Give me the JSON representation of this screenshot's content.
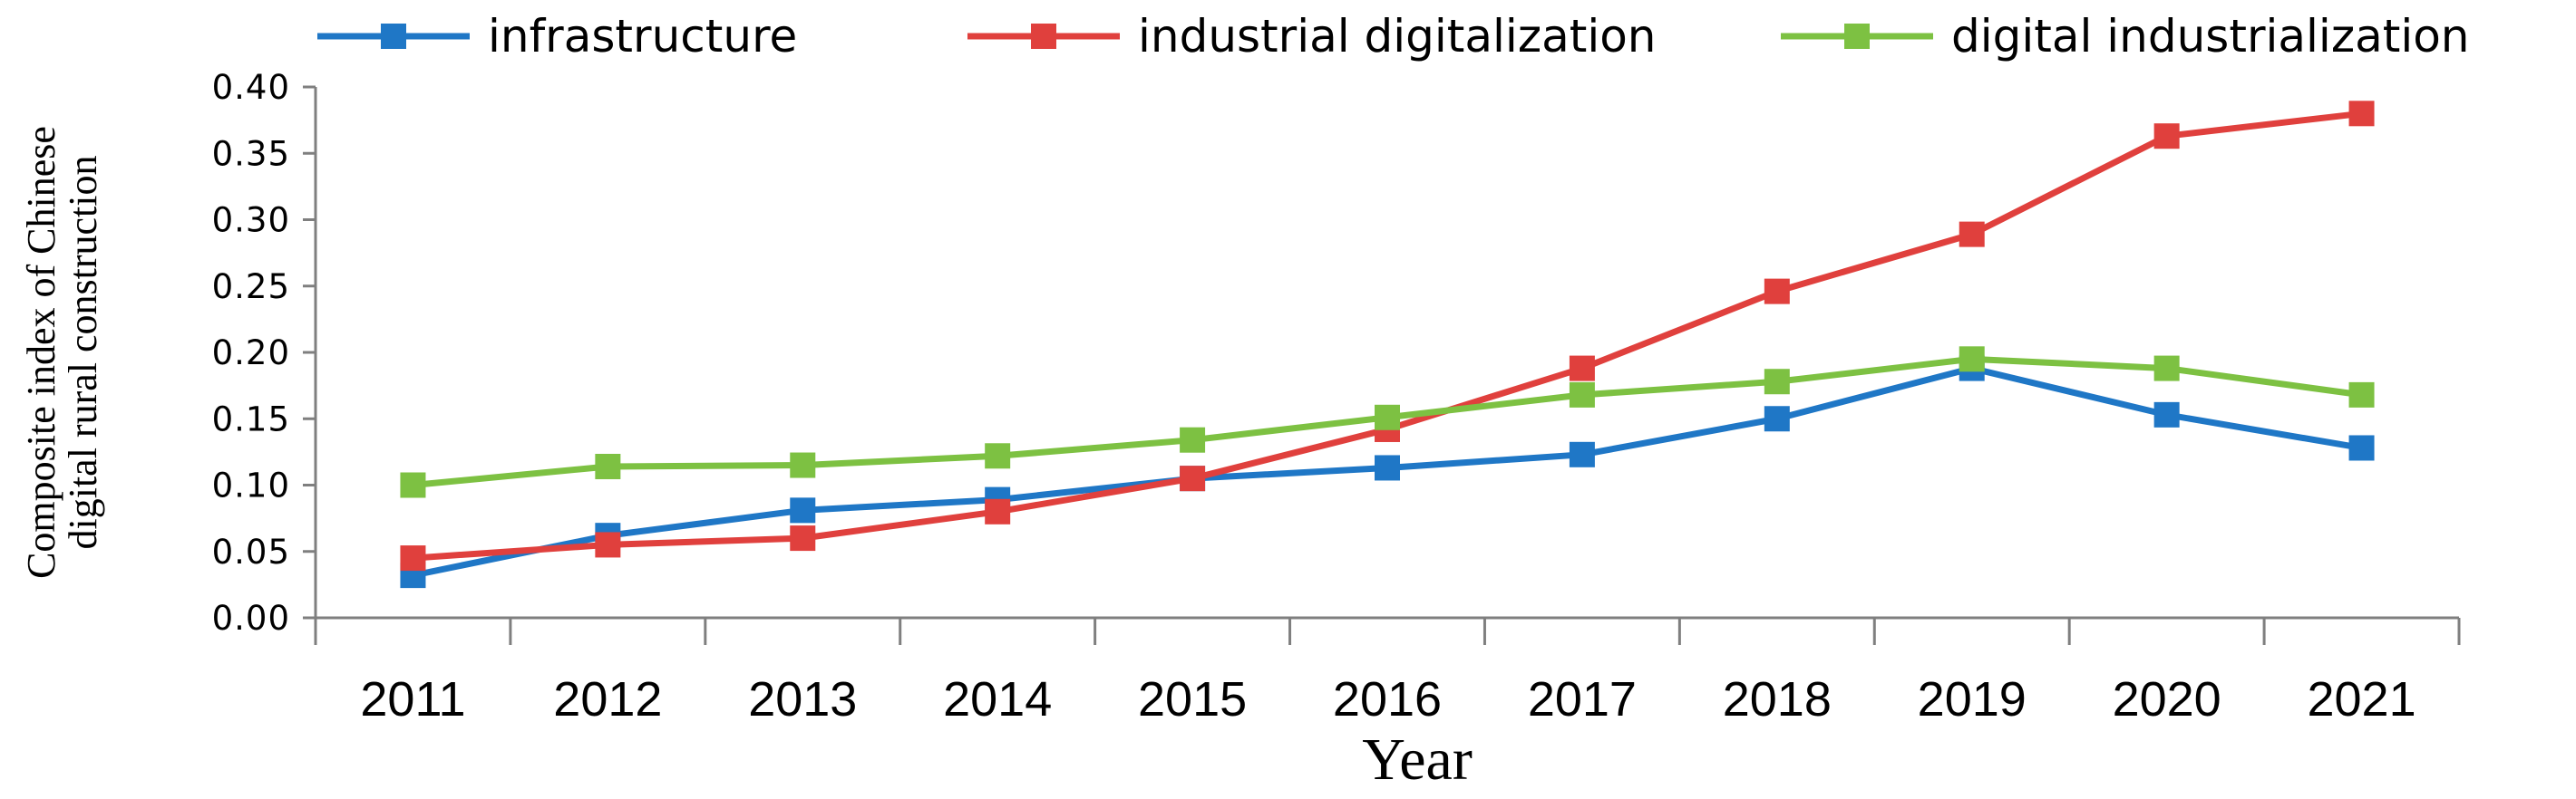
{
  "chart_data": {
    "type": "line",
    "categories": [
      "2011",
      "2012",
      "2013",
      "2014",
      "2015",
      "2016",
      "2017",
      "2018",
      "2019",
      "2020",
      "2021"
    ],
    "xlabel": "Year",
    "ylabel_lines": [
      "Composite index of Chinese",
      "digital rural construction"
    ],
    "ylim": [
      0,
      0.4
    ],
    "yticks": [
      "0.00",
      "0.05",
      "0.10",
      "0.15",
      "0.20",
      "0.25",
      "0.30",
      "0.35",
      "0.40"
    ],
    "legend_position": "top",
    "series": [
      {
        "name": "infrastructure",
        "color": "#1f77c6",
        "values": [
          0.032,
          0.062,
          0.081,
          0.089,
          0.105,
          0.113,
          0.123,
          0.15,
          0.188,
          0.153,
          0.128
        ]
      },
      {
        "name": "industrial digitalization",
        "color": "#e0403d",
        "values": [
          0.045,
          0.055,
          0.06,
          0.08,
          0.105,
          0.142,
          0.188,
          0.246,
          0.289,
          0.363,
          0.38
        ]
      },
      {
        "name": "digital industrialization",
        "color": "#7dc142",
        "values": [
          0.1,
          0.114,
          0.115,
          0.122,
          0.134,
          0.151,
          0.168,
          0.178,
          0.195,
          0.188,
          0.168
        ]
      }
    ]
  }
}
